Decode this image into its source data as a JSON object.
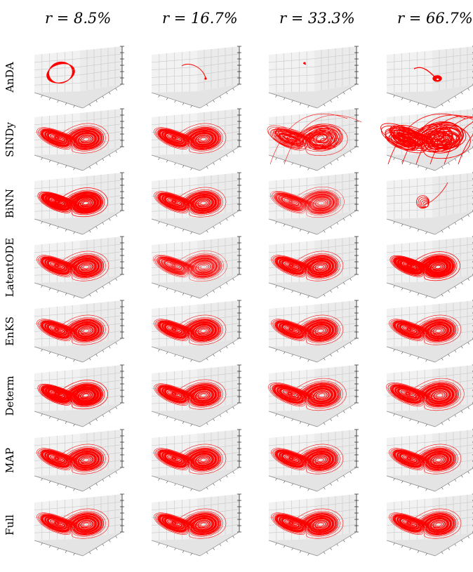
{
  "chart_data": {
    "type": "line",
    "subtype": "3d-trajectory-grid",
    "columns": [
      "r = 8.5%",
      "r = 16.7%",
      "r = 33.3%",
      "r = 66.7%"
    ],
    "rows": [
      "AnDA",
      "SINDy",
      "BiNN",
      "LatentODE",
      "EnKS",
      "Determ",
      "MAP",
      "Full"
    ],
    "trajectory_color": "#ff0000",
    "pane_color": "#ebebeb",
    "grid_color": "#c8c8c8",
    "panels": [
      [
        "small-orbit",
        "short-curve",
        "tiny-dot",
        "spiral-blob"
      ],
      [
        "butterfly",
        "butterfly",
        "butterfly-divergent",
        "chaotic-divergent"
      ],
      [
        "butterfly-dense",
        "butterfly",
        "butterfly-sparse",
        "collapsed-spiral"
      ],
      [
        "butterfly",
        "butterfly-sparse",
        "butterfly",
        "butterfly-dense"
      ],
      [
        "butterfly",
        "butterfly",
        "butterfly",
        "butterfly"
      ],
      [
        "butterfly-dense",
        "butterfly",
        "butterfly-wide",
        "butterfly-wide"
      ],
      [
        "butterfly",
        "butterfly",
        "butterfly",
        "butterfly"
      ],
      [
        "butterfly",
        "butterfly",
        "butterfly",
        "butterfly"
      ]
    ]
  }
}
